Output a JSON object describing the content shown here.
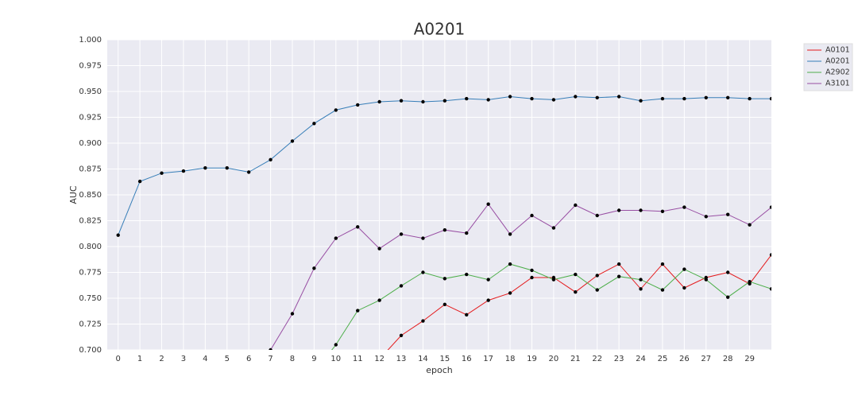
{
  "chart_data": {
    "type": "line",
    "title": "A0201",
    "xlabel": "epoch",
    "ylabel": "AUC",
    "x": [
      0,
      1,
      2,
      3,
      4,
      5,
      6,
      7,
      8,
      9,
      10,
      11,
      12,
      13,
      14,
      15,
      16,
      17,
      18,
      19,
      20,
      21,
      22,
      23,
      24,
      25,
      26,
      27,
      28,
      29,
      30
    ],
    "series": [
      {
        "name": "A0101",
        "color": "#e41a1c",
        "values": [
          null,
          null,
          null,
          null,
          null,
          null,
          null,
          null,
          null,
          null,
          null,
          null,
          0.691,
          0.714,
          0.728,
          0.744,
          0.734,
          0.748,
          0.755,
          0.77,
          0.77,
          0.756,
          0.772,
          0.783,
          0.759,
          0.783,
          0.76,
          0.77,
          0.775,
          0.764,
          0.792
        ]
      },
      {
        "name": "A0201",
        "color": "#377eb8",
        "values": [
          0.811,
          0.863,
          0.871,
          0.873,
          0.876,
          0.876,
          0.872,
          0.884,
          0.902,
          0.919,
          0.932,
          0.937,
          0.94,
          0.941,
          0.94,
          0.941,
          0.943,
          0.942,
          0.945,
          0.943,
          0.942,
          0.945,
          0.944,
          0.945,
          0.941,
          0.943,
          0.943,
          0.944,
          0.944,
          0.943,
          0.943
        ]
      },
      {
        "name": "A2902",
        "color": "#4daf4a",
        "values": [
          null,
          null,
          null,
          null,
          null,
          null,
          null,
          null,
          null,
          0.678,
          0.705,
          0.738,
          0.748,
          0.762,
          0.775,
          0.769,
          0.773,
          0.768,
          0.783,
          0.777,
          0.768,
          0.773,
          0.758,
          0.771,
          0.768,
          0.758,
          0.778,
          0.768,
          0.751,
          0.766,
          0.759
        ]
      },
      {
        "name": "A3101",
        "color": "#984ea3",
        "values": [
          null,
          null,
          null,
          null,
          null,
          null,
          null,
          0.7,
          0.735,
          0.779,
          0.808,
          0.819,
          0.798,
          0.812,
          0.808,
          0.816,
          0.813,
          0.841,
          0.812,
          0.83,
          0.818,
          0.84,
          0.83,
          0.835,
          0.835,
          0.834,
          0.838,
          0.829,
          0.831,
          0.821,
          0.838
        ]
      }
    ],
    "xlim": [
      -0.5,
      30
    ],
    "xticks": [
      0,
      1,
      2,
      3,
      4,
      5,
      6,
      7,
      8,
      9,
      10,
      11,
      12,
      13,
      14,
      15,
      16,
      17,
      18,
      19,
      20,
      21,
      22,
      23,
      24,
      25,
      26,
      27,
      28,
      29
    ],
    "ylim": [
      0.7,
      1.0
    ],
    "yticks": [
      {
        "value": 0.7,
        "label": "0.700"
      },
      {
        "value": 0.725,
        "label": "0.725"
      },
      {
        "value": 0.75,
        "label": "0.750"
      },
      {
        "value": 0.775,
        "label": "0.775"
      },
      {
        "value": 0.8,
        "label": "0.800"
      },
      {
        "value": 0.825,
        "label": "0.825"
      },
      {
        "value": 0.85,
        "label": "0.850"
      },
      {
        "value": 0.875,
        "label": "0.875"
      },
      {
        "value": 0.9,
        "label": "0.900"
      },
      {
        "value": 0.925,
        "label": "0.925"
      },
      {
        "value": 0.95,
        "label": "0.950"
      },
      {
        "value": 0.975,
        "label": "0.975"
      },
      {
        "value": 1.0,
        "label": "1.000"
      }
    ],
    "grid": true,
    "legend": "outside-upper-right"
  }
}
